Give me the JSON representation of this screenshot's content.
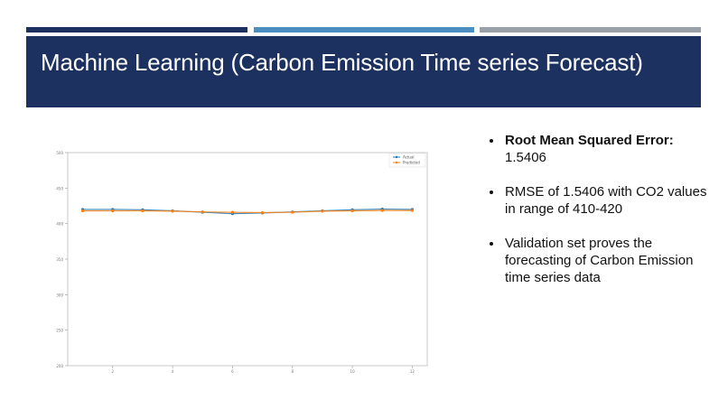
{
  "slide": {
    "title": "Machine Learning (Carbon Emission Time series Forecast)",
    "accent_colors": {
      "navy": "#1c3160",
      "blue": "#4a8fc0",
      "gray": "#9aa0a8"
    }
  },
  "bullets": [
    {
      "heading": "Root Mean Squared Error:",
      "text": "1.5406"
    },
    {
      "heading": "",
      "text": "RMSE of 1.5406 with CO2 values in range of 410-420"
    },
    {
      "heading": "",
      "text": "Validation set proves the forecasting of Carbon Emission time series data"
    }
  ],
  "chart_data": {
    "type": "line",
    "title": "",
    "xlabel": "",
    "ylabel": "",
    "x": [
      1,
      2,
      3,
      4,
      5,
      6,
      7,
      8,
      9,
      10,
      11,
      12
    ],
    "xticks": [
      2,
      4,
      6,
      8,
      10,
      12
    ],
    "yticks": [
      200,
      250,
      300,
      350,
      400,
      450,
      500
    ],
    "xlim": [
      0.5,
      12.5
    ],
    "ylim": [
      200,
      500
    ],
    "grid": false,
    "legend_position": "upper right",
    "series": [
      {
        "name": "Actual",
        "color": "#1f77b4",
        "marker": "o",
        "values": [
          420.0,
          420.0,
          419.5,
          418.0,
          416.0,
          414.0,
          415.0,
          416.5,
          418.0,
          419.5,
          420.5,
          420.0
        ]
      },
      {
        "name": "Predicted",
        "color": "#ff7f0e",
        "marker": "o",
        "values": [
          418.0,
          418.0,
          418.0,
          417.5,
          416.5,
          416.0,
          415.5,
          416.0,
          417.5,
          418.0,
          418.5,
          418.5
        ]
      }
    ]
  }
}
